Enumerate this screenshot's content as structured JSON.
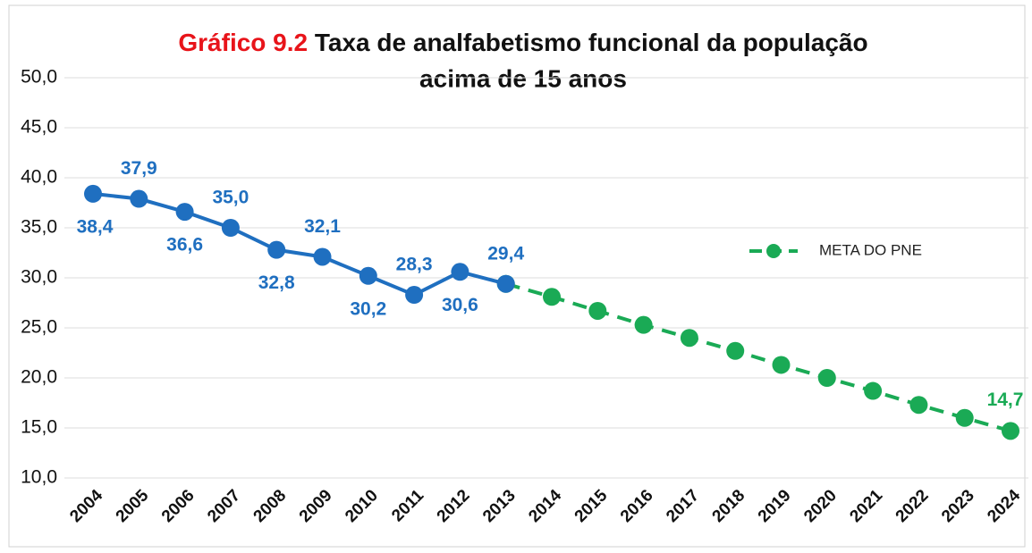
{
  "chart_data": {
    "type": "line",
    "title_label": "Gráfico 9.2",
    "title": [
      "Taxa de analfabetismo funcional da população",
      "acima de 15 anos"
    ],
    "categories": [
      "2004",
      "2005",
      "2006",
      "2007",
      "2008",
      "2009",
      "2010",
      "2011",
      "2012",
      "2013",
      "2014",
      "2015",
      "2016",
      "2017",
      "2018",
      "2019",
      "2020",
      "2021",
      "2022",
      "2023",
      "2024"
    ],
    "series": [
      {
        "color": "#1f6fc0",
        "dashed": false,
        "values": [
          38.4,
          37.9,
          36.6,
          35.0,
          32.8,
          32.1,
          30.2,
          28.3,
          30.6,
          29.4,
          null,
          null,
          null,
          null,
          null,
          null,
          null,
          null,
          null,
          null,
          null
        ],
        "value_labels": [
          "38,4",
          "37,9",
          "36,6",
          "35,0",
          "32,8",
          "32,1",
          "30,2",
          "28,3",
          "30,6",
          "29,4",
          null,
          null,
          null,
          null,
          null,
          null,
          null,
          null,
          null,
          null,
          null
        ]
      },
      {
        "name": "META DO PNE",
        "color": "#1aaa55",
        "dashed": true,
        "values": [
          null,
          null,
          null,
          null,
          null,
          null,
          null,
          null,
          null,
          29.4,
          28.1,
          26.7,
          25.3,
          24.0,
          22.7,
          21.3,
          20.0,
          18.7,
          17.3,
          16.0,
          14.7
        ],
        "value_labels": [
          null,
          null,
          null,
          null,
          null,
          null,
          null,
          null,
          null,
          null,
          null,
          null,
          null,
          null,
          null,
          null,
          null,
          null,
          null,
          null,
          "14,7"
        ]
      }
    ],
    "ylim": [
      10,
      50
    ],
    "yticks": [
      {
        "value": 10,
        "label": "10,0"
      },
      {
        "value": 15,
        "label": "15,0"
      },
      {
        "value": 20,
        "label": "20,0"
      },
      {
        "value": 25,
        "label": "25,0"
      },
      {
        "value": 30,
        "label": "30,0"
      },
      {
        "value": 35,
        "label": "35,0"
      },
      {
        "value": 40,
        "label": "40,0"
      },
      {
        "value": 45,
        "label": "45,0"
      },
      {
        "value": 50,
        "label": "50,0"
      }
    ],
    "grid": true,
    "legend": "right"
  }
}
